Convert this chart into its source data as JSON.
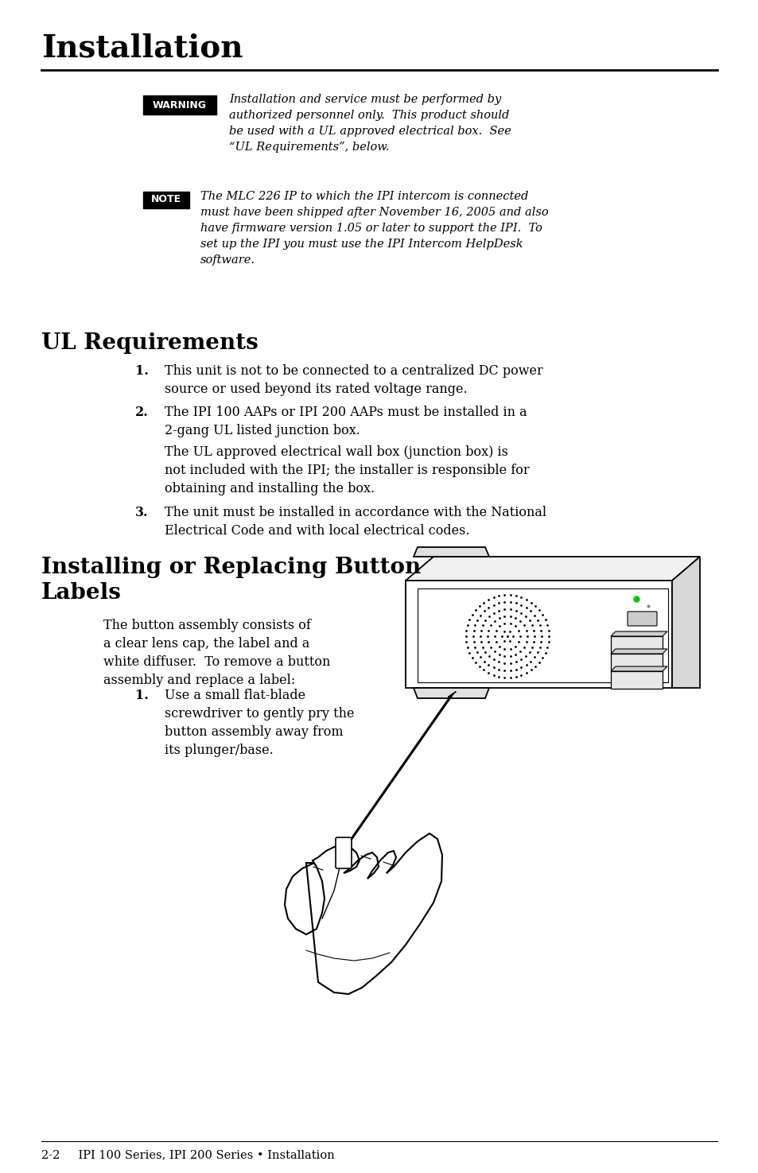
{
  "bg_color": "#ffffff",
  "page_title": "Installation",
  "footer_text": "2-2     IPI 100 Series, IPI 200 Series • Installation",
  "warning_label": "WARNING",
  "warning_text": "Installation and service must be performed by\nauthorized personnel only.  This product should\nbe used with a UL approved electrical box.  See\n“UL Requirements”, below.",
  "note_label": "NOTE",
  "note_text": "The MLC 226 IP to which the IPI intercom is connected\nmust have been shipped after November 16, 2005 and also\nhave firmware version 1.05 or later to support the IPI.  To\nset up the IPI you must use the IPI Intercom HelpDesk\nsoftware.",
  "ul_title": "UL Requirements",
  "install_title_line1": "Installing or Replacing Button",
  "install_title_line2": "Labels",
  "install_intro": "The button assembly consists of\na clear lens cap, the label and a\nwhite diffuser.  To remove a button\nassembly and replace a label:",
  "install_item1": "Use a small flat-blade\nscrewdriver to gently pry the\nbutton assembly away from\nits plunger/base."
}
